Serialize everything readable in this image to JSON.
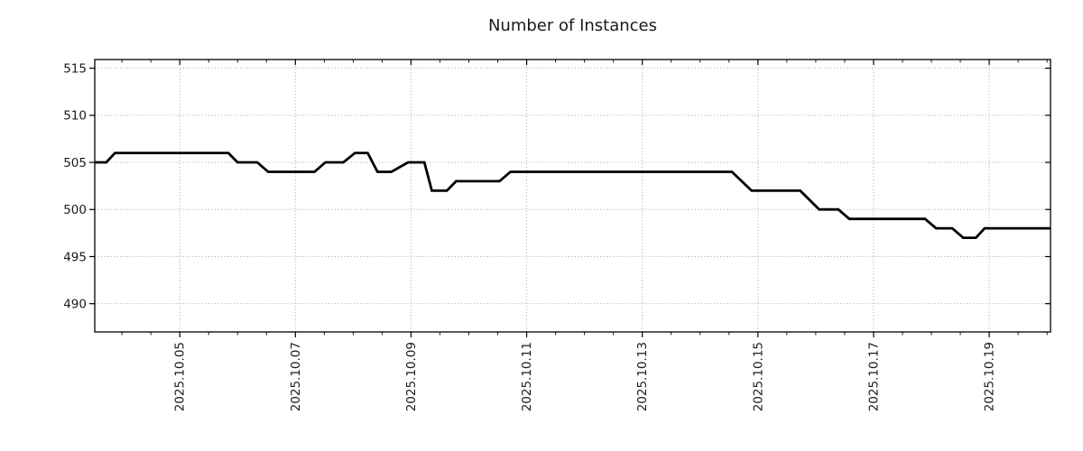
{
  "chart_data": {
    "type": "line",
    "title": "Number of Instances",
    "x_unit": "fractional day of October 2025",
    "xlim": [
      3.53,
      20.06
    ],
    "ylim": [
      487.0,
      515.92
    ],
    "y_ticks": [
      490,
      495,
      500,
      505,
      510,
      515
    ],
    "x_major_ticks": [
      {
        "day": 5,
        "label": "2025.10.05"
      },
      {
        "day": 7,
        "label": "2025.10.07"
      },
      {
        "day": 9,
        "label": "2025.10.09"
      },
      {
        "day": 11,
        "label": "2025.10.11"
      },
      {
        "day": 13,
        "label": "2025.10.13"
      },
      {
        "day": 15,
        "label": "2025.10.15"
      },
      {
        "day": 17,
        "label": "2025.10.17"
      },
      {
        "day": 19,
        "label": "2025.10.19"
      }
    ],
    "x_minor_tick_step_days": 0.5,
    "grid": {
      "on": true,
      "style": "dotted",
      "color": "#aaaaaa"
    },
    "legend": {
      "visible": false
    },
    "axis_color": "#000000",
    "text_color": "#1a1a1a",
    "background": "#ffffff",
    "series": [
      {
        "name": "Number of Instances",
        "color": "#000000",
        "linewidth": 2.8,
        "points": [
          [
            3.53,
            505
          ],
          [
            3.73,
            505
          ],
          [
            3.88,
            506
          ],
          [
            5.84,
            506
          ],
          [
            6.0,
            505
          ],
          [
            6.34,
            505
          ],
          [
            6.53,
            504
          ],
          [
            7.33,
            504
          ],
          [
            7.52,
            505
          ],
          [
            7.83,
            505
          ],
          [
            8.03,
            506
          ],
          [
            8.25,
            506
          ],
          [
            8.42,
            504
          ],
          [
            8.66,
            504
          ],
          [
            8.95,
            505
          ],
          [
            9.23,
            505
          ],
          [
            9.36,
            502
          ],
          [
            9.62,
            502
          ],
          [
            9.78,
            503
          ],
          [
            10.53,
            503
          ],
          [
            10.72,
            504
          ],
          [
            14.55,
            504
          ],
          [
            14.89,
            502
          ],
          [
            15.73,
            502
          ],
          [
            16.06,
            500
          ],
          [
            16.39,
            500
          ],
          [
            16.58,
            499
          ],
          [
            17.89,
            499
          ],
          [
            18.08,
            498
          ],
          [
            18.36,
            498
          ],
          [
            18.55,
            497
          ],
          [
            18.77,
            497
          ],
          [
            18.92,
            498
          ],
          [
            20.06,
            498
          ]
        ]
      }
    ]
  }
}
